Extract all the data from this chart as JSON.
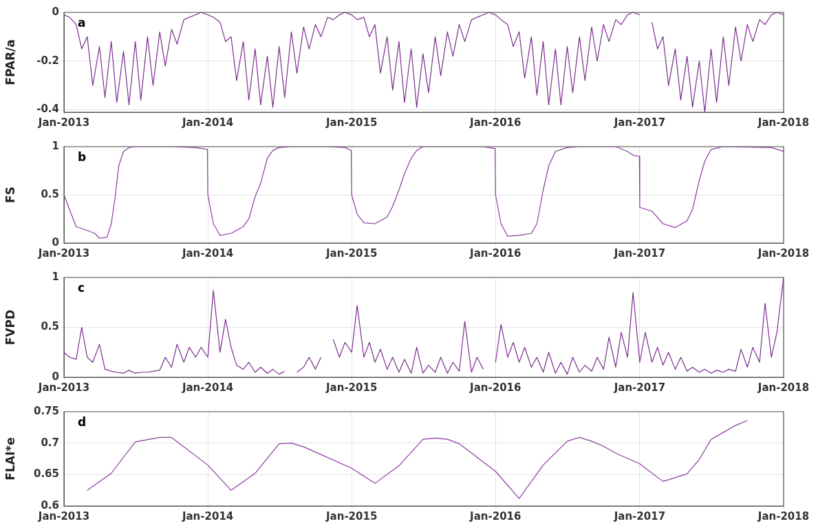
{
  "chart_data": [
    {
      "type": "line",
      "ylabel": "FPAR/a",
      "annotations": [
        "a"
      ],
      "color": "#7b2d8e",
      "grid": true,
      "xlim": [
        "2013-01-01",
        "2018-01-01"
      ],
      "xticks": [
        {
          "value": "2013-01-01",
          "label": "Jan-2013"
        },
        {
          "value": "2014-01-01",
          "label": "Jan-2014"
        },
        {
          "value": "2015-01-01",
          "label": "Jan-2015"
        },
        {
          "value": "2016-01-01",
          "label": "Jan-2016"
        },
        {
          "value": "2017-01-01",
          "label": "Jan-2017"
        },
        {
          "value": "2018-01-01",
          "label": "Jan-2018"
        }
      ],
      "ylim": [
        -0.41,
        0
      ],
      "yticks": [
        -0.4,
        -0.2,
        0
      ],
      "x": [
        "2013-01-01",
        "2013-01-15",
        "2013-02-01",
        "2013-02-15",
        "2013-03-01",
        "2013-03-15",
        "2013-04-01",
        "2013-04-15",
        "2013-05-01",
        "2013-05-15",
        "2013-06-01",
        "2013-06-15",
        "2013-07-01",
        "2013-07-15",
        "2013-08-01",
        "2013-08-15",
        "2013-09-01",
        "2013-09-15",
        "2013-10-01",
        "2013-10-15",
        "2013-11-01",
        "2013-11-15",
        "2013-12-01",
        "2013-12-15",
        "2014-01-01",
        "2014-01-15",
        "2014-02-01",
        "2014-02-15",
        "2014-03-01",
        "2014-03-15",
        "2014-04-01",
        "2014-04-15",
        "2014-05-01",
        "2014-05-15",
        "2014-06-01",
        "2014-06-15",
        "2014-07-01",
        "2014-07-15",
        "2014-08-01",
        "2014-08-15",
        "2014-09-01",
        "2014-09-15",
        "2014-10-01",
        "2014-10-15",
        "2014-11-01",
        "2014-11-15",
        "2014-12-01",
        "2014-12-15",
        "2015-01-01",
        "2015-01-15",
        "2015-02-01",
        "2015-02-15",
        "2015-03-01",
        "2015-03-15",
        "2015-04-01",
        "2015-04-15",
        "2015-05-01",
        "2015-05-15",
        "2015-06-01",
        "2015-06-15",
        "2015-07-01",
        "2015-07-15",
        "2015-08-01",
        "2015-08-15",
        "2015-09-01",
        "2015-09-15",
        "2015-10-01",
        "2015-10-15",
        "2015-11-01",
        "2015-11-15",
        "2015-12-01",
        "2015-12-15",
        "2016-01-01",
        "2016-01-15",
        "2016-02-01",
        "2016-02-15",
        "2016-03-01",
        "2016-03-15",
        "2016-04-01",
        "2016-04-15",
        "2016-05-01",
        "2016-05-15",
        "2016-06-01",
        "2016-06-15",
        "2016-07-01",
        "2016-07-15",
        "2016-08-01",
        "2016-08-15",
        "2016-09-01",
        "2016-09-15",
        "2016-10-01",
        "2016-10-15",
        "2016-11-01",
        "2016-11-15",
        "2016-12-01",
        "2016-12-15",
        "2017-01-01",
        "2017-01-15",
        "2017-02-01",
        "2017-02-15",
        "2017-03-01",
        "2017-03-15",
        "2017-04-01",
        "2017-04-15",
        "2017-05-01",
        "2017-05-15",
        "2017-06-01",
        "2017-06-15",
        "2017-07-01",
        "2017-07-15",
        "2017-08-01",
        "2017-08-15",
        "2017-09-01",
        "2017-09-15",
        "2017-10-01",
        "2017-10-15",
        "2017-11-01",
        "2017-11-15",
        "2017-12-01",
        "2017-12-15",
        "2018-01-01"
      ],
      "values": [
        -0.01,
        -0.02,
        -0.05,
        -0.15,
        -0.1,
        -0.3,
        -0.14,
        -0.35,
        -0.12,
        -0.37,
        -0.16,
        -0.38,
        -0.12,
        -0.36,
        -0.1,
        -0.3,
        -0.08,
        -0.22,
        -0.07,
        -0.13,
        -0.03,
        -0.02,
        -0.01,
        0,
        -0.01,
        -0.02,
        -0.04,
        -0.12,
        -0.1,
        -0.28,
        -0.12,
        -0.36,
        -0.15,
        -0.38,
        -0.18,
        -0.39,
        -0.14,
        -0.35,
        -0.08,
        -0.25,
        -0.06,
        -0.15,
        -0.05,
        -0.1,
        -0.02,
        -0.03,
        -0.01,
        0,
        -0.01,
        -0.03,
        -0.02,
        -0.1,
        -0.05,
        -0.25,
        -0.1,
        -0.32,
        -0.12,
        -0.37,
        -0.15,
        -0.39,
        -0.17,
        -0.33,
        -0.1,
        -0.26,
        -0.08,
        -0.18,
        -0.05,
        -0.12,
        -0.03,
        -0.02,
        -0.01,
        0,
        -0.01,
        -0.03,
        -0.05,
        -0.14,
        -0.08,
        -0.27,
        -0.1,
        -0.34,
        -0.12,
        -0.38,
        -0.15,
        -0.38,
        -0.14,
        -0.33,
        -0.1,
        -0.28,
        -0.06,
        -0.2,
        -0.05,
        -0.12,
        -0.03,
        -0.05,
        -0.01,
        0,
        -0.01,
        null,
        -0.04,
        -0.15,
        -0.1,
        -0.3,
        -0.15,
        -0.36,
        -0.18,
        -0.39,
        -0.2,
        -0.41,
        -0.15,
        -0.37,
        -0.1,
        -0.3,
        -0.06,
        -0.2,
        -0.05,
        -0.12,
        -0.03,
        -0.05,
        -0.01,
        0,
        -0.01
      ]
    },
    {
      "type": "line",
      "ylabel": "FS",
      "annotations": [
        "b"
      ],
      "color": "#8b3a9e",
      "grid": true,
      "xlim": [
        "2013-01-01",
        "2018-01-01"
      ],
      "xticks": [
        {
          "value": "2013-01-01",
          "label": "Jan-2013"
        },
        {
          "value": "2014-01-01",
          "label": "Jan-2014"
        },
        {
          "value": "2015-01-01",
          "label": "Jan-2015"
        },
        {
          "value": "2016-01-01",
          "label": "Jan-2016"
        },
        {
          "value": "2017-01-01",
          "label": "Jan-2017"
        },
        {
          "value": "2018-01-01",
          "label": "Jan-2018"
        }
      ],
      "ylim": [
        0,
        1
      ],
      "yticks": [
        0,
        0.5,
        1
      ],
      "x": [
        "2013-01-01",
        "2013-01-15",
        "2013-02-01",
        "2013-03-01",
        "2013-03-20",
        "2013-04-01",
        "2013-04-20",
        "2013-05-01",
        "2013-05-10",
        "2013-05-20",
        "2013-06-01",
        "2013-06-15",
        "2013-07-01",
        "2013-10-01",
        "2013-12-01",
        "2013-12-31",
        "2014-01-01",
        "2014-01-15",
        "2014-02-01",
        "2014-03-01",
        "2014-04-01",
        "2014-04-15",
        "2014-05-01",
        "2014-05-15",
        "2014-06-01",
        "2014-06-15",
        "2014-07-01",
        "2014-08-01",
        "2014-11-01",
        "2014-12-15",
        "2014-12-31",
        "2015-01-01",
        "2015-01-15",
        "2015-02-01",
        "2015-03-01",
        "2015-04-01",
        "2015-04-15",
        "2015-05-01",
        "2015-05-15",
        "2015-06-01",
        "2015-06-15",
        "2015-07-01",
        "2015-12-01",
        "2015-12-31",
        "2016-01-01",
        "2016-01-15",
        "2016-02-01",
        "2016-03-01",
        "2016-04-01",
        "2016-04-15",
        "2016-05-01",
        "2016-05-15",
        "2016-06-01",
        "2016-07-01",
        "2016-08-01",
        "2016-11-01",
        "2016-12-01",
        "2016-12-15",
        "2016-12-31",
        "2017-01-01",
        "2017-02-01",
        "2017-03-01",
        "2017-04-01",
        "2017-05-01",
        "2017-05-15",
        "2017-06-01",
        "2017-06-15",
        "2017-07-01",
        "2017-08-01",
        "2017-12-01",
        "2018-01-01"
      ],
      "values": [
        0.5,
        0.35,
        0.17,
        0.13,
        0.1,
        0.05,
        0.06,
        0.2,
        0.45,
        0.8,
        0.95,
        0.99,
        1,
        1,
        0.99,
        0.97,
        0.5,
        0.2,
        0.08,
        0.1,
        0.17,
        0.25,
        0.48,
        0.62,
        0.88,
        0.96,
        0.99,
        1,
        1,
        0.99,
        0.96,
        0.5,
        0.3,
        0.21,
        0.2,
        0.27,
        0.38,
        0.55,
        0.72,
        0.88,
        0.96,
        1,
        1,
        0.98,
        0.5,
        0.2,
        0.07,
        0.08,
        0.1,
        0.2,
        0.55,
        0.8,
        0.95,
        0.99,
        1,
        1,
        0.95,
        0.91,
        0.9,
        0.37,
        0.33,
        0.2,
        0.16,
        0.23,
        0.35,
        0.65,
        0.85,
        0.97,
        1,
        0.99,
        0.95
      ]
    },
    {
      "type": "line",
      "ylabel": "FVPD",
      "annotations": [
        "c"
      ],
      "color": "#7b2d8e",
      "grid": true,
      "xlim": [
        "2013-01-01",
        "2018-01-01"
      ],
      "xticks": [
        {
          "value": "2013-01-01",
          "label": "Jan-2013"
        },
        {
          "value": "2014-01-01",
          "label": "Jan-2014"
        },
        {
          "value": "2015-01-01",
          "label": "Jan-2015"
        },
        {
          "value": "2016-01-01",
          "label": "Jan-2016"
        },
        {
          "value": "2017-01-01",
          "label": "Jan-2017"
        },
        {
          "value": "2018-01-01",
          "label": "Jan-2018"
        }
      ],
      "ylim": [
        0,
        1
      ],
      "yticks": [
        0,
        0.5,
        1
      ],
      "x": [
        "2013-01-01",
        "2013-01-15",
        "2013-02-01",
        "2013-02-15",
        "2013-03-01",
        "2013-03-15",
        "2013-04-01",
        "2013-04-15",
        "2013-05-01",
        "2013-05-15",
        "2013-06-01",
        "2013-06-15",
        "2013-07-01",
        "2013-07-15",
        "2013-08-01",
        "2013-08-15",
        "2013-09-01",
        "2013-09-15",
        "2013-10-01",
        "2013-10-15",
        "2013-11-01",
        "2013-11-15",
        "2013-12-01",
        "2013-12-15",
        "2014-01-01",
        "2014-01-15",
        "2014-02-01",
        "2014-02-15",
        "2014-03-01",
        "2014-03-15",
        "2014-04-01",
        "2014-04-15",
        "2014-05-01",
        "2014-05-15",
        "2014-06-01",
        "2014-06-15",
        "2014-07-01",
        "2014-07-15",
        "2014-08-01",
        "2014-08-15",
        "2014-09-01",
        "2014-09-15",
        "2014-10-01",
        "2014-10-15",
        "2014-11-01",
        "2014-11-15",
        "2014-12-01",
        "2014-12-15",
        "2015-01-01",
        "2015-01-15",
        "2015-02-01",
        "2015-02-15",
        "2015-03-01",
        "2015-03-15",
        "2015-04-01",
        "2015-04-15",
        "2015-05-01",
        "2015-05-15",
        "2015-06-01",
        "2015-06-15",
        "2015-07-01",
        "2015-07-15",
        "2015-08-01",
        "2015-08-15",
        "2015-09-01",
        "2015-09-15",
        "2015-10-01",
        "2015-10-15",
        "2015-11-01",
        "2015-11-15",
        "2015-12-01",
        "2015-12-15",
        "2016-01-01",
        "2016-01-15",
        "2016-02-01",
        "2016-02-15",
        "2016-03-01",
        "2016-03-15",
        "2016-04-01",
        "2016-04-15",
        "2016-05-01",
        "2016-05-15",
        "2016-06-01",
        "2016-06-15",
        "2016-07-01",
        "2016-07-15",
        "2016-08-01",
        "2016-08-15",
        "2016-09-01",
        "2016-09-15",
        "2016-10-01",
        "2016-10-15",
        "2016-11-01",
        "2016-11-15",
        "2016-12-01",
        "2016-12-15",
        "2017-01-01",
        "2017-01-15",
        "2017-02-01",
        "2017-02-15",
        "2017-03-01",
        "2017-03-15",
        "2017-04-01",
        "2017-04-15",
        "2017-05-01",
        "2017-05-15",
        "2017-06-01",
        "2017-06-15",
        "2017-07-01",
        "2017-07-15",
        "2017-08-01",
        "2017-08-15",
        "2017-09-01",
        "2017-09-15",
        "2017-10-01",
        "2017-10-15",
        "2017-11-01",
        "2017-11-15",
        "2017-12-01",
        "2017-12-15",
        "2018-01-01"
      ],
      "values": [
        0.25,
        0.2,
        0.18,
        0.5,
        0.2,
        0.15,
        0.33,
        0.08,
        0.06,
        0.05,
        0.04,
        0.07,
        0.04,
        0.05,
        0.05,
        0.06,
        0.07,
        0.2,
        0.1,
        0.33,
        0.15,
        0.3,
        0.2,
        0.3,
        0.2,
        0.87,
        0.25,
        0.58,
        0.3,
        0.12,
        0.08,
        0.15,
        0.05,
        0.1,
        0.04,
        0.08,
        0.03,
        0.06,
        null,
        0.05,
        0.1,
        0.2,
        0.08,
        0.2,
        null,
        0.38,
        0.2,
        0.35,
        0.25,
        0.72,
        0.2,
        0.35,
        0.15,
        0.28,
        0.08,
        0.2,
        0.05,
        0.18,
        0.04,
        0.3,
        0.04,
        0.12,
        0.05,
        0.2,
        0.04,
        0.15,
        0.06,
        0.56,
        0.05,
        0.2,
        0.08,
        null,
        0.15,
        0.53,
        0.2,
        0.35,
        0.15,
        0.3,
        0.1,
        0.2,
        0.05,
        0.25,
        0.04,
        0.15,
        0.03,
        0.2,
        0.05,
        0.12,
        0.06,
        0.2,
        0.08,
        0.4,
        0.1,
        0.45,
        0.2,
        0.85,
        0.15,
        0.45,
        0.15,
        0.3,
        0.12,
        0.25,
        0.08,
        0.2,
        0.06,
        0.1,
        0.05,
        0.08,
        0.04,
        0.07,
        0.05,
        0.08,
        0.06,
        0.28,
        0.1,
        0.3,
        0.15,
        0.74,
        0.2,
        0.45,
        1
      ]
    },
    {
      "type": "line",
      "ylabel": "FLAI*e",
      "annotations": [
        "d"
      ],
      "color": "#8b3a9e",
      "grid": true,
      "xlim": [
        "2013-01-01",
        "2018-01-01"
      ],
      "xticks": [
        {
          "value": "2013-01-01",
          "label": "Jan-2013"
        },
        {
          "value": "2014-01-01",
          "label": "Jan-2014"
        },
        {
          "value": "2015-01-01",
          "label": "Jan-2015"
        },
        {
          "value": "2016-01-01",
          "label": "Jan-2016"
        },
        {
          "value": "2017-01-01",
          "label": "Jan-2017"
        },
        {
          "value": "2018-01-01",
          "label": "Jan-2018"
        }
      ],
      "ylim": [
        0.6,
        0.75
      ],
      "yticks": [
        0.6,
        0.65,
        0.7,
        0.75
      ],
      "x": [
        "2013-03-01",
        "2013-05-01",
        "2013-07-01",
        "2013-09-01",
        "2013-10-01",
        "2014-01-01",
        "2014-03-01",
        "2014-05-01",
        "2014-07-01",
        "2014-08-01",
        "2014-09-01",
        "2015-01-01",
        "2015-03-01",
        "2015-05-01",
        "2015-07-01",
        "2015-08-01",
        "2015-09-01",
        "2015-10-01",
        "2016-01-01",
        "2016-03-01",
        "2016-05-01",
        "2016-07-01",
        "2016-08-01",
        "2016-09-01",
        "2016-10-01",
        "2016-11-01",
        "2017-01-01",
        "2017-03-01",
        "2017-05-01",
        "2017-06-01",
        "2017-07-01",
        "2017-08-01",
        "2017-09-01",
        "2017-10-01"
      ],
      "values": [
        0.625,
        0.652,
        0.702,
        0.709,
        0.709,
        0.665,
        0.625,
        0.652,
        0.699,
        0.7,
        0.694,
        0.66,
        0.636,
        0.664,
        0.706,
        0.708,
        0.706,
        0.699,
        0.655,
        0.612,
        0.665,
        0.703,
        0.709,
        0.703,
        0.695,
        0.684,
        0.667,
        0.639,
        0.651,
        0.674,
        0.706,
        0.717,
        0.728,
        0.736
      ]
    }
  ]
}
